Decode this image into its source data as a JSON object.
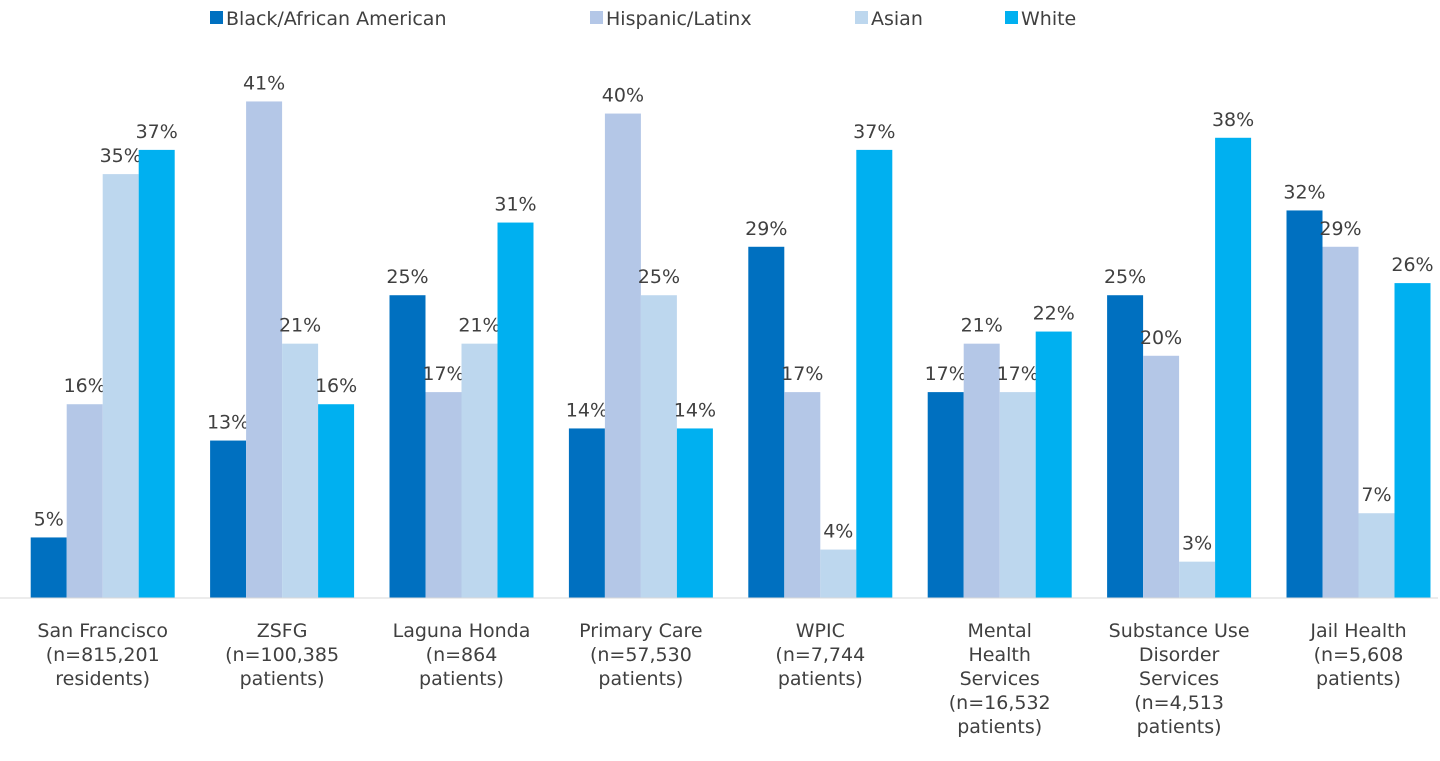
{
  "chart_data": {
    "type": "bar",
    "categories": [
      [
        "San Francisco",
        "(n=815,201",
        "residents)"
      ],
      [
        "ZSFG",
        "(n=100,385",
        "patients)"
      ],
      [
        "Laguna Honda",
        "(n=864",
        "patients)"
      ],
      [
        "Primary Care",
        "(n=57,530",
        "patients)"
      ],
      [
        "WPIC",
        "(n=7,744",
        "patients)"
      ],
      [
        "Mental",
        "Health",
        "Services",
        "(n=16,532",
        "patients)"
      ],
      [
        "Substance Use",
        "Disorder",
        "Services",
        "(n=4,513",
        "patients)"
      ],
      [
        "Jail Health",
        "(n=5,608",
        "patients)"
      ]
    ],
    "series": [
      {
        "name": "Black/African American",
        "color": "#0070c0",
        "values": [
          5,
          13,
          25,
          14,
          29,
          17,
          25,
          32
        ],
        "value_labels": [
          "5%",
          "13%",
          "25%",
          "14%",
          "29%",
          "17%",
          "25%",
          "32%"
        ]
      },
      {
        "name": "Hispanic/Latinx",
        "color": "#b4c7e7",
        "values": [
          16,
          41,
          17,
          40,
          17,
          21,
          20,
          29
        ],
        "value_labels": [
          "16%",
          "41%",
          "17%",
          "40%",
          "17%",
          "21%",
          "20%",
          "29%"
        ]
      },
      {
        "name": "Asian",
        "color": "#bdd7ee",
        "values": [
          35,
          21,
          21,
          25,
          4,
          17,
          3,
          7
        ],
        "value_labels": [
          "35%",
          "21%",
          "21%",
          "25%",
          "4%",
          "17%",
          "3%",
          "7%"
        ]
      },
      {
        "name": "White",
        "color": "#00b0f0",
        "values": [
          37,
          16,
          31,
          14,
          37,
          22,
          38,
          26
        ],
        "value_labels": [
          "37%",
          "16%",
          "31%",
          "14%",
          "37%",
          "22%",
          "38%",
          "26%"
        ]
      }
    ],
    "ylim": [
      0,
      45
    ],
    "legend": "top"
  }
}
